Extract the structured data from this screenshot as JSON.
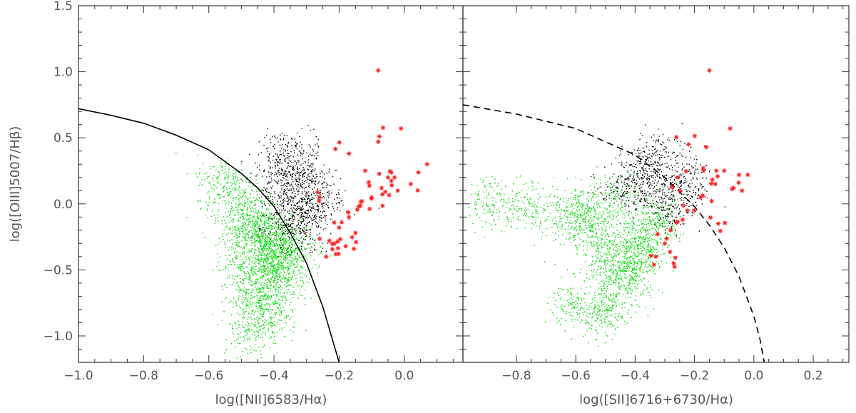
{
  "chart_data": [
    {
      "type": "scatter",
      "panel": "left",
      "xlabel": "log([NII]6583/Hα)",
      "ylabel": "log([OIII]5007/Hβ)",
      "xlim": [
        -1.0,
        0.18
      ],
      "ylim": [
        -1.2,
        1.5
      ],
      "xticks": [
        -1.0,
        -0.8,
        -0.6,
        -0.4,
        -0.2,
        0.0
      ],
      "xtick_labels": [
        "−1.0",
        "−0.8",
        "−0.6",
        "−0.4",
        "−0.2",
        "0.0"
      ],
      "yticks": [
        -1.0,
        -0.5,
        0.0,
        0.5,
        1.0,
        1.5
      ],
      "ytick_labels": [
        "−1.0",
        "−0.5",
        "0.0",
        "0.5",
        "1.0",
        "1.5"
      ],
      "curve": {
        "style": "solid",
        "x": [
          -1.0,
          -0.9,
          -0.8,
          -0.7,
          -0.6,
          -0.5,
          -0.45,
          -0.4,
          -0.35,
          -0.3,
          -0.25,
          -0.2
        ],
        "y": [
          0.72,
          0.67,
          0.61,
          0.52,
          0.41,
          0.23,
          0.12,
          -0.02,
          -0.22,
          -0.45,
          -0.78,
          -1.2
        ]
      },
      "series": [
        {
          "color": "#00dd00",
          "marker": "dot",
          "points": [
            [
              -0.48,
              -0.25
            ],
            [
              -0.45,
              -0.15
            ],
            [
              -0.42,
              -0.3
            ],
            [
              -0.4,
              -0.4
            ],
            [
              -0.38,
              -0.5
            ],
            [
              -0.44,
              -0.6
            ],
            [
              -0.46,
              -0.75
            ],
            [
              -0.42,
              -0.85
            ],
            [
              -0.39,
              -0.45
            ],
            [
              -0.36,
              -0.35
            ],
            [
              -0.5,
              -0.1
            ],
            [
              -0.52,
              0.05
            ],
            [
              -0.55,
              0.18
            ],
            [
              -0.47,
              -0.95
            ],
            [
              -0.4,
              -0.65
            ],
            [
              -0.43,
              -0.2
            ],
            [
              -0.37,
              -0.3
            ],
            [
              -0.49,
              -0.45
            ]
          ]
        },
        {
          "color": "#000000",
          "marker": "dot",
          "points": [
            [
              -0.38,
              0.1
            ],
            [
              -0.35,
              0.0
            ],
            [
              -0.32,
              -0.1
            ],
            [
              -0.3,
              -0.25
            ],
            [
              -0.33,
              0.2
            ],
            [
              -0.4,
              0.35
            ],
            [
              -0.36,
              0.25
            ],
            [
              -0.28,
              -0.05
            ],
            [
              -0.25,
              0.05
            ],
            [
              -0.37,
              -0.15
            ],
            [
              -0.34,
              0.4
            ],
            [
              -0.3,
              0.15
            ]
          ]
        },
        {
          "color": "#ff2020",
          "marker": "asterisk",
          "points": [
            [
              -0.08,
              1.01
            ],
            [
              -0.01,
              0.57
            ],
            [
              0.07,
              0.3
            ],
            [
              -0.17,
              0.38
            ],
            [
              -0.08,
              0.47
            ],
            [
              -0.12,
              0.25
            ],
            [
              -0.05,
              0.2
            ],
            [
              -0.02,
              0.1
            ],
            [
              -0.07,
              0.12
            ],
            [
              -0.1,
              0.05
            ],
            [
              -0.14,
              -0.02
            ],
            [
              -0.17,
              -0.1
            ],
            [
              -0.2,
              -0.18
            ],
            [
              -0.23,
              -0.28
            ],
            [
              -0.24,
              -0.4
            ],
            [
              -0.21,
              -0.38
            ],
            [
              -0.18,
              -0.32
            ],
            [
              -0.13,
              0.02
            ],
            [
              -0.03,
              0.2
            ],
            [
              0.02,
              0.15
            ],
            [
              -0.26,
              0.05
            ],
            [
              -0.15,
              -0.22
            ]
          ]
        }
      ]
    },
    {
      "type": "scatter",
      "panel": "right",
      "xlabel": "log([SII]6716+6730/Hα)",
      "xlim": [
        -0.98,
        0.32
      ],
      "ylim": [
        -1.2,
        1.5
      ],
      "xticks": [
        -0.8,
        -0.6,
        -0.4,
        -0.2,
        0.0,
        0.2
      ],
      "xtick_labels": [
        "−0.8",
        "−0.6",
        "−0.4",
        "−0.2",
        "0.0",
        "0.2"
      ],
      "curve": {
        "style": "dashed",
        "x": [
          -0.98,
          -0.8,
          -0.6,
          -0.4,
          -0.3,
          -0.2,
          -0.15,
          -0.1,
          -0.05,
          0.0,
          0.02,
          0.035
        ],
        "y": [
          0.75,
          0.68,
          0.57,
          0.37,
          0.2,
          -0.02,
          -0.16,
          -0.33,
          -0.55,
          -0.85,
          -1.02,
          -1.2
        ]
      },
      "series": [
        {
          "color": "#00dd00",
          "marker": "dot",
          "points": [
            [
              -0.88,
              0.02
            ],
            [
              -0.75,
              -0.02
            ],
            [
              -0.62,
              -0.1
            ],
            [
              -0.55,
              -0.2
            ],
            [
              -0.5,
              -0.35
            ],
            [
              -0.45,
              -0.45
            ],
            [
              -0.42,
              -0.55
            ],
            [
              -0.47,
              -0.7
            ],
            [
              -0.52,
              -0.85
            ],
            [
              -0.38,
              -0.3
            ],
            [
              -0.35,
              -0.2
            ],
            [
              -0.58,
              -0.05
            ],
            [
              -0.48,
              0.05
            ],
            [
              -0.4,
              -0.4
            ],
            [
              -0.6,
              -0.75
            ],
            [
              -0.33,
              -0.1
            ]
          ]
        },
        {
          "color": "#000000",
          "marker": "dot",
          "points": [
            [
              -0.4,
              0.1
            ],
            [
              -0.35,
              0.2
            ],
            [
              -0.3,
              0.05
            ],
            [
              -0.25,
              0.25
            ],
            [
              -0.32,
              0.4
            ],
            [
              -0.45,
              0.15
            ],
            [
              -0.28,
              -0.05
            ],
            [
              -0.38,
              0.3
            ],
            [
              -0.22,
              0.1
            ]
          ]
        },
        {
          "color": "#ff2020",
          "marker": "asterisk",
          "points": [
            [
              -0.15,
              1.01
            ],
            [
              -0.08,
              0.57
            ],
            [
              -0.16,
              0.43
            ],
            [
              -0.22,
              0.45
            ],
            [
              -0.1,
              0.25
            ],
            [
              -0.05,
              0.22
            ],
            [
              -0.13,
              0.15
            ],
            [
              -0.18,
              0.05
            ],
            [
              -0.2,
              -0.05
            ],
            [
              -0.24,
              -0.12
            ],
            [
              -0.28,
              -0.2
            ],
            [
              -0.3,
              -0.3
            ],
            [
              -0.33,
              -0.4
            ],
            [
              -0.27,
              -0.45
            ],
            [
              -0.12,
              -0.15
            ],
            [
              -0.04,
              0.1
            ],
            [
              -0.17,
              0.25
            ],
            [
              -0.25,
              0.1
            ]
          ]
        }
      ]
    }
  ]
}
